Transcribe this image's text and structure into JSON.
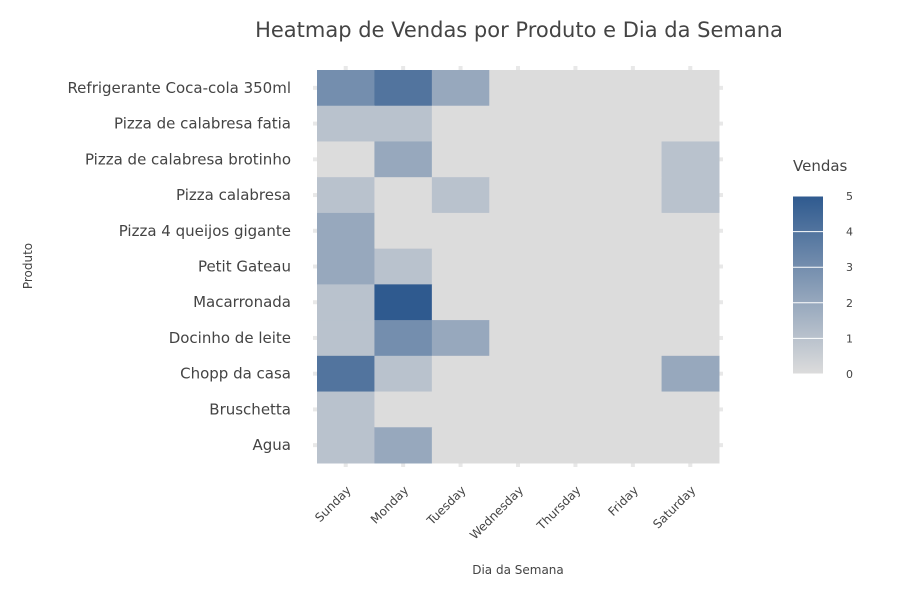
{
  "chart_data": {
    "type": "heatmap",
    "title": "Heatmap de Vendas por Produto e Dia da Semana",
    "xlabel": "Dia da Semana",
    "ylabel": "Produto",
    "x": [
      "Sunday",
      "Monday",
      "Tuesday",
      "Wednesday",
      "Thursday",
      "Friday",
      "Saturday"
    ],
    "y": [
      "Refrigerante Coca-cola 350ml",
      "Pizza de calabresa fatia",
      "Pizza de calabresa brotinho",
      "Pizza calabresa",
      "Pizza 4 queijos gigante",
      "Petit Gateau",
      "Macarronada",
      "Docinho de leite",
      "Chopp da casa",
      "Bruschetta",
      "Agua"
    ],
    "z": [
      [
        3,
        4,
        2,
        0,
        0,
        0,
        0
      ],
      [
        1,
        1,
        0,
        0,
        0,
        0,
        0
      ],
      [
        0,
        2,
        0,
        0,
        0,
        0,
        1
      ],
      [
        1,
        0,
        1,
        0,
        0,
        0,
        1
      ],
      [
        2,
        0,
        0,
        0,
        0,
        0,
        0
      ],
      [
        2,
        1,
        0,
        0,
        0,
        0,
        0
      ],
      [
        1,
        5,
        0,
        0,
        0,
        0,
        0
      ],
      [
        1,
        3,
        2,
        0,
        0,
        0,
        0
      ],
      [
        4,
        1,
        0,
        0,
        0,
        0,
        2
      ],
      [
        1,
        0,
        0,
        0,
        0,
        0,
        0
      ],
      [
        1,
        2,
        0,
        0,
        0,
        0,
        0
      ]
    ],
    "zlim": [
      0,
      5
    ],
    "legend": {
      "title": "Vendas",
      "ticks": [
        5,
        4,
        3,
        2,
        1,
        0
      ],
      "placement": "right"
    },
    "colors": {
      "low": "#dcdcdc",
      "high": "#2f5a8f",
      "background": "#dcdcdc",
      "text": "#444444"
    }
  }
}
